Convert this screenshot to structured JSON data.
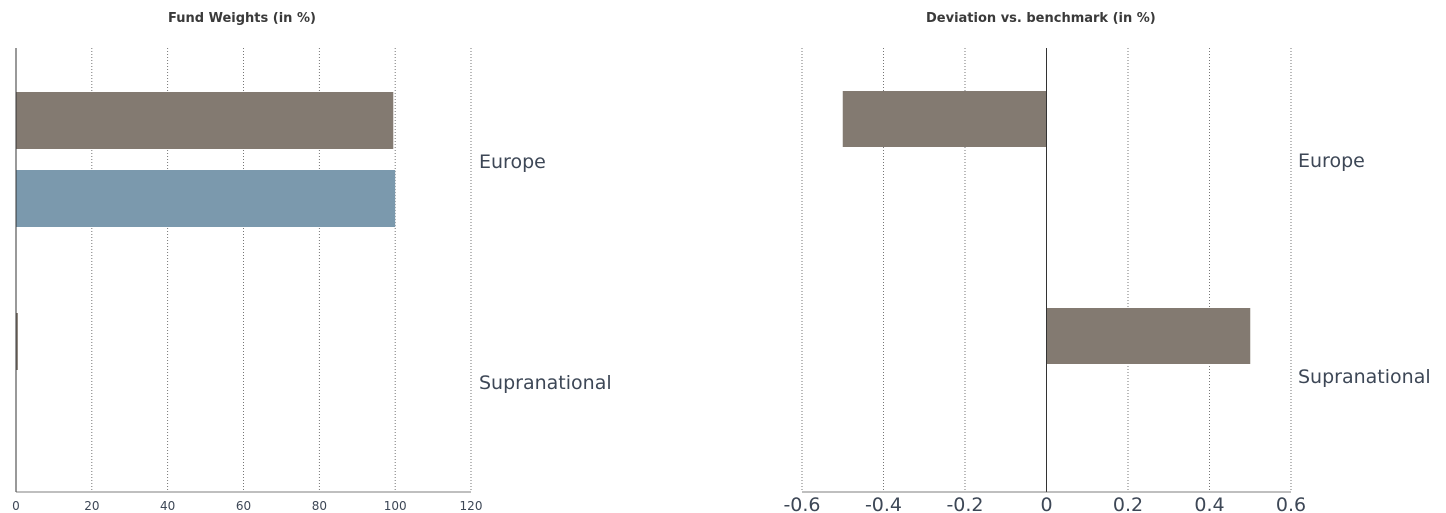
{
  "chart_data": [
    {
      "type": "bar",
      "orientation": "horizontal",
      "title": "Fund Weights (in %)",
      "categories": [
        "Europe",
        "Supranational"
      ],
      "series": [
        {
          "values": [
            99.5,
            0.5
          ],
          "color": "#837a71"
        },
        {
          "values": [
            100,
            0
          ],
          "color": "#7b99ad"
        }
      ],
      "xlim": [
        0,
        120
      ],
      "xticks": [
        0,
        20,
        40,
        60,
        80,
        100,
        120
      ],
      "grid": true
    },
    {
      "type": "bar",
      "orientation": "horizontal",
      "title": "Deviation vs. benchmark (in %)",
      "categories": [
        "Europe",
        "Supranational"
      ],
      "series": [
        {
          "values": [
            -0.5,
            0.5
          ],
          "color": "#837a71"
        }
      ],
      "xlim": [
        -0.6,
        0.6
      ],
      "xticks": [
        -0.6,
        -0.4,
        -0.2,
        0,
        0.2,
        0.4,
        0.6
      ],
      "grid": true
    }
  ]
}
